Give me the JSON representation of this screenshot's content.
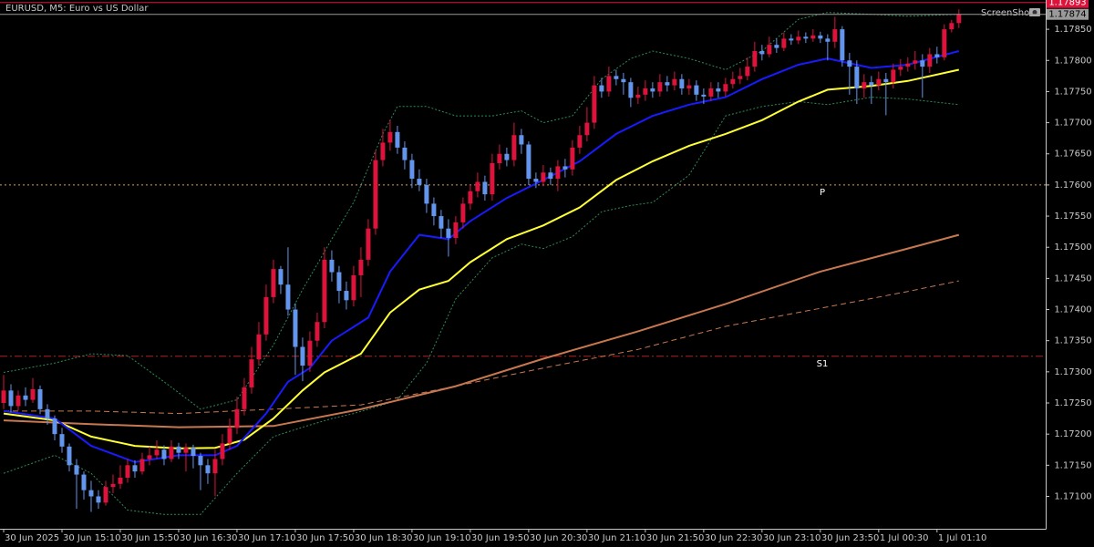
{
  "chart_data": {
    "type": "candlestick",
    "title": "EURUSD, M5:  Euro vs US Dollar",
    "watermark": "ScreenShot",
    "up_color": "#dc143c",
    "down_color": "#6495ed",
    "xlim": [
      -0.5,
      142.9
    ],
    "xticks": [
      {
        "value": 0,
        "label": "30 Jun 2025"
      },
      {
        "value": 8,
        "label": "30 Jun 15:10"
      },
      {
        "value": 16,
        "label": "30 Jun 15:50"
      },
      {
        "value": 24,
        "label": "30 Jun 16:30"
      },
      {
        "value": 32,
        "label": "30 Jun 17:10"
      },
      {
        "value": 40,
        "label": "30 Jun 17:50"
      },
      {
        "value": 48,
        "label": "30 Jun 18:30"
      },
      {
        "value": 56,
        "label": "30 Jun 19:10"
      },
      {
        "value": 64,
        "label": "30 Jun 19:50"
      },
      {
        "value": 72,
        "label": "30 Jun 20:30"
      },
      {
        "value": 80,
        "label": "30 Jun 21:10"
      },
      {
        "value": 88,
        "label": "30 Jun 21:50"
      },
      {
        "value": 96,
        "label": "30 Jun 22:30"
      },
      {
        "value": 104,
        "label": "30 Jun 23:10"
      },
      {
        "value": 112,
        "label": "30 Jun 23:50"
      },
      {
        "value": 120,
        "label": "1 Jul 00:30"
      },
      {
        "value": 128,
        "label": "1 Jul 01:10"
      }
    ],
    "ylim": [
      1.17048,
      1.17897
    ],
    "yticks": [
      {
        "value": 1.171,
        "label": "1.17100"
      },
      {
        "value": 1.1715,
        "label": "1.17150"
      },
      {
        "value": 1.172,
        "label": "1.17200"
      },
      {
        "value": 1.1725,
        "label": "1.17250"
      },
      {
        "value": 1.173,
        "label": "1.17300"
      },
      {
        "value": 1.1735,
        "label": "1.17350"
      },
      {
        "value": 1.174,
        "label": "1.17400"
      },
      {
        "value": 1.1745,
        "label": "1.17450"
      },
      {
        "value": 1.175,
        "label": "1.17500"
      },
      {
        "value": 1.1755,
        "label": "1.17550"
      },
      {
        "value": 1.176,
        "label": "1.17600"
      },
      {
        "value": 1.1765,
        "label": "1.17650"
      },
      {
        "value": 1.177,
        "label": "1.17700"
      },
      {
        "value": 1.1775,
        "label": "1.17750"
      },
      {
        "value": 1.178,
        "label": "1.17800"
      },
      {
        "value": 1.1785,
        "label": "1.17850"
      }
    ],
    "open": [
      1.1725,
      1.1727,
      1.17245,
      1.17262,
      1.17255,
      1.17272,
      1.1724,
      1.17225,
      1.172,
      1.1718,
      1.1715,
      1.17135,
      1.1711,
      1.171,
      1.1709,
      1.17115,
      1.1712,
      1.1713,
      1.1715,
      1.1714,
      1.1716,
      1.17166,
      1.17175,
      1.1716,
      1.1718,
      1.1717,
      1.17178,
      1.17165,
      1.1715,
      1.17137,
      1.1716,
      1.17185,
      1.1721,
      1.1724,
      1.17275,
      1.1732,
      1.1736,
      1.1742,
      1.17465,
      1.1744,
      1.174,
      1.1734,
      1.1731,
      1.1735,
      1.1738,
      1.1748,
      1.1746,
      1.1743,
      1.17415,
      1.17455,
      1.1748,
      1.1753,
      1.1764,
      1.17668,
      1.17685,
      1.1766,
      1.1764,
      1.1761,
      1.176,
      1.1757,
      1.1755,
      1.1753,
      1.17515,
      1.1754,
      1.1757,
      1.1759,
      1.17605,
      1.17585,
      1.17635,
      1.1765,
      1.1764,
      1.1768,
      1.17665,
      1.1761,
      1.17605,
      1.1762,
      1.1761,
      1.1763,
      1.17625,
      1.1766,
      1.1768,
      1.177,
      1.1776,
      1.1775,
      1.17775,
      1.1777,
      1.17765,
      1.1774,
      1.17745,
      1.17755,
      1.1775,
      1.17765,
      1.1776,
      1.1777,
      1.17755,
      1.1776,
      1.17745,
      1.17742,
      1.17755,
      1.1775,
      1.17762,
      1.1777,
      1.17775,
      1.1779,
      1.17815,
      1.1781,
      1.17825,
      1.1782,
      1.17835,
      1.17832,
      1.17838,
      1.17835,
      1.1784,
      1.17835,
      1.1783,
      1.1785,
      1.178,
      1.1779,
      1.17755,
      1.17765,
      1.1776,
      1.1777,
      1.17765,
      1.17785,
      1.1779,
      1.17795,
      1.178,
      1.1779,
      1.1781,
      1.17805,
      1.1785,
      1.1786
    ],
    "high": [
      1.17295,
      1.1728,
      1.1727,
      1.17275,
      1.1729,
      1.17278,
      1.17248,
      1.1723,
      1.1721,
      1.17185,
      1.1716,
      1.1714,
      1.17125,
      1.1711,
      1.17125,
      1.17135,
      1.1715,
      1.1716,
      1.17158,
      1.1717,
      1.1718,
      1.1719,
      1.17182,
      1.1719,
      1.17186,
      1.17185,
      1.17183,
      1.1717,
      1.1716,
      1.17175,
      1.172,
      1.17225,
      1.1726,
      1.1729,
      1.1734,
      1.1738,
      1.1744,
      1.1748,
      1.1747,
      1.175,
      1.1741,
      1.17355,
      1.17365,
      1.17395,
      1.175,
      1.17495,
      1.1747,
      1.17445,
      1.1747,
      1.175,
      1.17545,
      1.17655,
      1.1769,
      1.17705,
      1.17695,
      1.1767,
      1.1765,
      1.17625,
      1.1761,
      1.1758,
      1.1756,
      1.17545,
      1.1755,
      1.1758,
      1.176,
      1.1762,
      1.17615,
      1.1765,
      1.17665,
      1.1766,
      1.177,
      1.1769,
      1.1767,
      1.1762,
      1.17632,
      1.17628,
      1.1764,
      1.17642,
      1.17672,
      1.17695,
      1.17725,
      1.17775,
      1.17772,
      1.1779,
      1.17785,
      1.1778,
      1.17772,
      1.17758,
      1.17768,
      1.17765,
      1.17778,
      1.17775,
      1.17782,
      1.17778,
      1.1777,
      1.17768,
      1.17755,
      1.17765,
      1.17765,
      1.17772,
      1.17782,
      1.17788,
      1.17805,
      1.1783,
      1.17825,
      1.17838,
      1.17835,
      1.17845,
      1.17842,
      1.17848,
      1.17845,
      1.1785,
      1.17846,
      1.17842,
      1.1787,
      1.17855,
      1.17812,
      1.178,
      1.17778,
      1.17775,
      1.17782,
      1.1778,
      1.17795,
      1.17802,
      1.17805,
      1.17815,
      1.1781,
      1.1782,
      1.17822,
      1.17858,
      1.17865,
      1.17882
    ],
    "low": [
      1.1724,
      1.17235,
      1.17238,
      1.17245,
      1.1725,
      1.17232,
      1.17215,
      1.1719,
      1.1717,
      1.1714,
      1.1708,
      1.17095,
      1.17075,
      1.1708,
      1.17085,
      1.17105,
      1.17112,
      1.17122,
      1.1713,
      1.17135,
      1.1715,
      1.1716,
      1.1715,
      1.17155,
      1.1716,
      1.1714,
      1.17145,
      1.1711,
      1.1712,
      1.171,
      1.1715,
      1.17175,
      1.172,
      1.1723,
      1.17265,
      1.1731,
      1.1735,
      1.1741,
      1.17425,
      1.1739,
      1.17295,
      1.17285,
      1.173,
      1.1734,
      1.1737,
      1.17445,
      1.1741,
      1.174,
      1.17405,
      1.1742,
      1.1747,
      1.1752,
      1.1763,
      1.17655,
      1.1765,
      1.17625,
      1.17595,
      1.1759,
      1.17555,
      1.17535,
      1.17515,
      1.17485,
      1.17505,
      1.1753,
      1.1756,
      1.1758,
      1.17575,
      1.17575,
      1.17625,
      1.1763,
      1.1763,
      1.1765,
      1.176,
      1.17595,
      1.17598,
      1.176,
      1.1759,
      1.17612,
      1.17615,
      1.1765,
      1.1767,
      1.1769,
      1.1774,
      1.17742,
      1.1776,
      1.17745,
      1.17725,
      1.1773,
      1.17735,
      1.1774,
      1.17742,
      1.1775,
      1.17752,
      1.17745,
      1.17745,
      1.17735,
      1.1773,
      1.17735,
      1.1774,
      1.17742,
      1.17755,
      1.17762,
      1.17768,
      1.17782,
      1.178,
      1.17805,
      1.17812,
      1.17815,
      1.17825,
      1.17826,
      1.17828,
      1.1783,
      1.17828,
      1.178,
      1.1782,
      1.1779,
      1.17745,
      1.1773,
      1.1774,
      1.1773,
      1.17752,
      1.17712,
      1.17755,
      1.17775,
      1.17782,
      1.17785,
      1.1774,
      1.1778,
      1.17795,
      1.178,
      1.17845,
      1.17852
    ],
    "close": [
      1.1727,
      1.17245,
      1.17262,
      1.17255,
      1.17272,
      1.1724,
      1.17225,
      1.172,
      1.1718,
      1.1715,
      1.17135,
      1.1711,
      1.171,
      1.1709,
      1.17115,
      1.1712,
      1.1713,
      1.1715,
      1.1714,
      1.1716,
      1.17166,
      1.17175,
      1.1716,
      1.1718,
      1.1717,
      1.17178,
      1.17165,
      1.1715,
      1.17137,
      1.1716,
      1.17185,
      1.1721,
      1.1724,
      1.17275,
      1.1732,
      1.1736,
      1.1742,
      1.17465,
      1.1744,
      1.174,
      1.1734,
      1.1731,
      1.1735,
      1.1738,
      1.1748,
      1.1746,
      1.1743,
      1.17415,
      1.17455,
      1.1748,
      1.1753,
      1.1764,
      1.17668,
      1.17685,
      1.1766,
      1.1764,
      1.1761,
      1.176,
      1.1757,
      1.1755,
      1.1753,
      1.17515,
      1.1754,
      1.1757,
      1.1759,
      1.17605,
      1.17585,
      1.17635,
      1.1765,
      1.1764,
      1.1768,
      1.17665,
      1.1761,
      1.17605,
      1.1762,
      1.1761,
      1.1763,
      1.17625,
      1.1766,
      1.1768,
      1.177,
      1.1776,
      1.1775,
      1.17775,
      1.1777,
      1.17765,
      1.1774,
      1.17745,
      1.17755,
      1.1775,
      1.17765,
      1.1776,
      1.1777,
      1.17755,
      1.1776,
      1.17745,
      1.17742,
      1.17755,
      1.1775,
      1.17762,
      1.1777,
      1.17775,
      1.1779,
      1.17815,
      1.1781,
      1.17825,
      1.1782,
      1.17835,
      1.17832,
      1.17838,
      1.17835,
      1.1784,
      1.17835,
      1.1783,
      1.1785,
      1.178,
      1.1779,
      1.17755,
      1.17765,
      1.1776,
      1.1777,
      1.17765,
      1.17785,
      1.1779,
      1.17795,
      1.178,
      1.1779,
      1.1781,
      1.17805,
      1.1785,
      1.1786,
      1.17874
    ],
    "lines": [
      {
        "color": "#2e8b57",
        "dash": "2,2",
        "width": 1,
        "x": [
          0,
          7,
          12,
          17,
          22,
          27,
          32,
          37,
          41,
          45,
          48,
          52,
          54,
          58,
          62,
          67,
          71,
          74,
          78,
          82,
          86,
          89,
          94,
          99,
          104,
          109,
          113,
          119,
          124,
          131
        ],
        "values": [
          1.17299,
          1.17314,
          1.17329,
          1.17326,
          1.17284,
          1.1724,
          1.17255,
          1.17343,
          1.17432,
          1.17513,
          1.17572,
          1.17682,
          1.17726,
          1.17726,
          1.17711,
          1.17711,
          1.17719,
          1.177,
          1.17711,
          1.1777,
          1.17803,
          1.17815,
          1.17803,
          1.17785,
          1.17815,
          1.17866,
          1.17877,
          1.17874,
          1.17871,
          1.17874
        ]
      },
      {
        "color": "#2e8b57",
        "dash": "2,2",
        "width": 1,
        "x": [
          0,
          7,
          12,
          17,
          22,
          27,
          32,
          37,
          41,
          45,
          48,
          52,
          54,
          58,
          62,
          67,
          71,
          74,
          78,
          82,
          86,
          89,
          94,
          99,
          104,
          109,
          113,
          119,
          124,
          131
        ],
        "values": [
          1.17137,
          1.17166,
          1.17137,
          1.17078,
          1.17071,
          1.17071,
          1.17137,
          1.17196,
          1.17211,
          1.17225,
          1.17233,
          1.17247,
          1.17255,
          1.17314,
          1.17417,
          1.17483,
          1.17505,
          1.17498,
          1.17517,
          1.17557,
          1.17567,
          1.17572,
          1.17616,
          1.17711,
          1.17726,
          1.17734,
          1.17729,
          1.17741,
          1.17738,
          1.17729
        ]
      },
      {
        "color": "#c87850",
        "dash": "6,4",
        "width": 1,
        "x": [
          0,
          12,
          24,
          37,
          49,
          62,
          74,
          87,
          99,
          112,
          124,
          131
        ],
        "values": [
          1.17237,
          1.17237,
          1.17233,
          1.1724,
          1.17247,
          1.17277,
          1.17306,
          1.17336,
          1.17373,
          1.17402,
          1.17429,
          1.17446
        ]
      },
      {
        "color": "#c87850",
        "dash": "none",
        "width": 2,
        "x": [
          0,
          12,
          24,
          37,
          49,
          62,
          74,
          87,
          99,
          112,
          124,
          131
        ],
        "values": [
          1.17222,
          1.17216,
          1.17211,
          1.17213,
          1.1724,
          1.17277,
          1.17321,
          1.17365,
          1.17409,
          1.17461,
          1.17498,
          1.1752
        ]
      },
      {
        "color": "#ffff33",
        "dash": "none",
        "width": 2,
        "x": [
          0,
          7,
          12,
          18,
          24,
          29,
          33,
          37,
          41,
          44,
          49,
          53,
          57,
          61,
          64,
          69,
          74,
          79,
          84,
          89,
          94,
          99,
          104,
          109,
          113,
          119,
          124,
          131
        ],
        "values": [
          1.17233,
          1.17222,
          1.17196,
          1.17181,
          1.17177,
          1.17178,
          1.17191,
          1.17225,
          1.1727,
          1.17299,
          1.17329,
          1.17395,
          1.17432,
          1.17446,
          1.17476,
          1.17513,
          1.17535,
          1.17564,
          1.17608,
          1.17638,
          1.17663,
          1.17682,
          1.17704,
          1.17734,
          1.17753,
          1.17759,
          1.17767,
          1.17785
        ]
      },
      {
        "color": "#1a1aff",
        "dash": "none",
        "width": 2,
        "x": [
          0,
          7,
          12,
          18,
          24,
          29,
          32,
          36,
          39,
          42,
          45,
          50,
          53,
          57,
          61,
          64,
          69,
          74,
          79,
          84,
          89,
          94,
          99,
          104,
          109,
          113,
          119,
          124,
          131
        ],
        "values": [
          1.17237,
          1.17225,
          1.17181,
          1.17155,
          1.17166,
          1.17166,
          1.17181,
          1.17233,
          1.17284,
          1.17306,
          1.1735,
          1.17387,
          1.17461,
          1.1752,
          1.17513,
          1.17542,
          1.17579,
          1.17608,
          1.17638,
          1.17682,
          1.17711,
          1.17729,
          1.17741,
          1.1777,
          1.17793,
          1.17803,
          1.17788,
          1.17793,
          1.17815
        ]
      }
    ],
    "levels": [
      {
        "label": "P",
        "value": 1.176,
        "color": "#d2a060",
        "dash": "2,3"
      },
      {
        "label": "S1",
        "value": 1.17325,
        "color": "#b22222",
        "dash": "8,3,2,3"
      }
    ],
    "last_price": {
      "value": 1.17874,
      "label": "1.17874"
    },
    "ask_price": {
      "value": 1.17893,
      "label": "1.17893"
    }
  }
}
